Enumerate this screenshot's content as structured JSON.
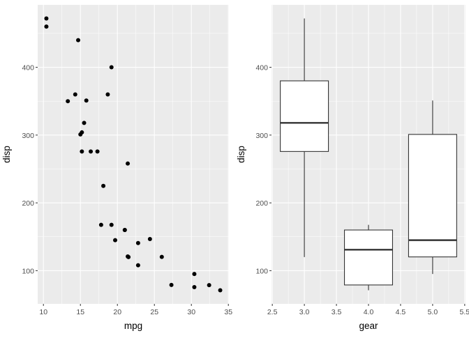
{
  "chart_data": [
    {
      "type": "scatter",
      "xlabel": "mpg",
      "ylabel": "disp",
      "xlim": [
        9.225,
        35.075
      ],
      "ylim": [
        51.06,
        492.05
      ],
      "xticks": [
        10,
        15,
        20,
        25,
        30,
        35
      ],
      "yticks": [
        100,
        200,
        300,
        400
      ],
      "grid": true,
      "point_color": "#000000",
      "x": [
        21.0,
        21.0,
        22.8,
        21.4,
        18.7,
        18.1,
        14.3,
        24.4,
        22.8,
        19.2,
        17.8,
        16.4,
        17.3,
        15.2,
        10.4,
        10.4,
        14.7,
        32.4,
        30.4,
        33.9,
        21.5,
        15.5,
        15.2,
        13.3,
        19.2,
        27.3,
        26.0,
        30.4,
        15.8,
        19.7,
        15.0,
        21.4
      ],
      "y": [
        160,
        160,
        108,
        258,
        360,
        225,
        360,
        146.7,
        140.8,
        167.6,
        167.6,
        275.8,
        275.8,
        275.8,
        472,
        460,
        440,
        78.7,
        75.7,
        71.1,
        120.1,
        318,
        304,
        350,
        400,
        79,
        120.3,
        95.1,
        351,
        145,
        301,
        121
      ]
    },
    {
      "type": "box",
      "xlabel": "gear",
      "ylabel": "disp",
      "xlim": [
        2.4875,
        5.5125
      ],
      "ylim": [
        51.06,
        492.05
      ],
      "xticks": [
        "2.5",
        "3.0",
        "3.5",
        "4.0",
        "4.5",
        "5.0",
        "5.5"
      ],
      "yticks": [
        100,
        200,
        300,
        400
      ],
      "grid": true,
      "box_width": 0.75,
      "boxes": [
        {
          "x": 3,
          "lower_whisker": 120.1,
          "q1": 275.8,
          "median": 318,
          "q3": 380,
          "upper_whisker": 472
        },
        {
          "x": 4,
          "lower_whisker": 71.1,
          "q1": 78.925,
          "median": 130.9,
          "q3": 160,
          "upper_whisker": 167.6
        },
        {
          "x": 5,
          "lower_whisker": 95.1,
          "q1": 120.3,
          "median": 145,
          "q3": 301,
          "upper_whisker": 351
        }
      ]
    }
  ],
  "colors": {
    "panel": "#EBEBEB",
    "grid": "#FFFFFF",
    "axis_text": "#4D4D4D",
    "box_line": "#333333",
    "box_fill": "#FFFFFF"
  }
}
